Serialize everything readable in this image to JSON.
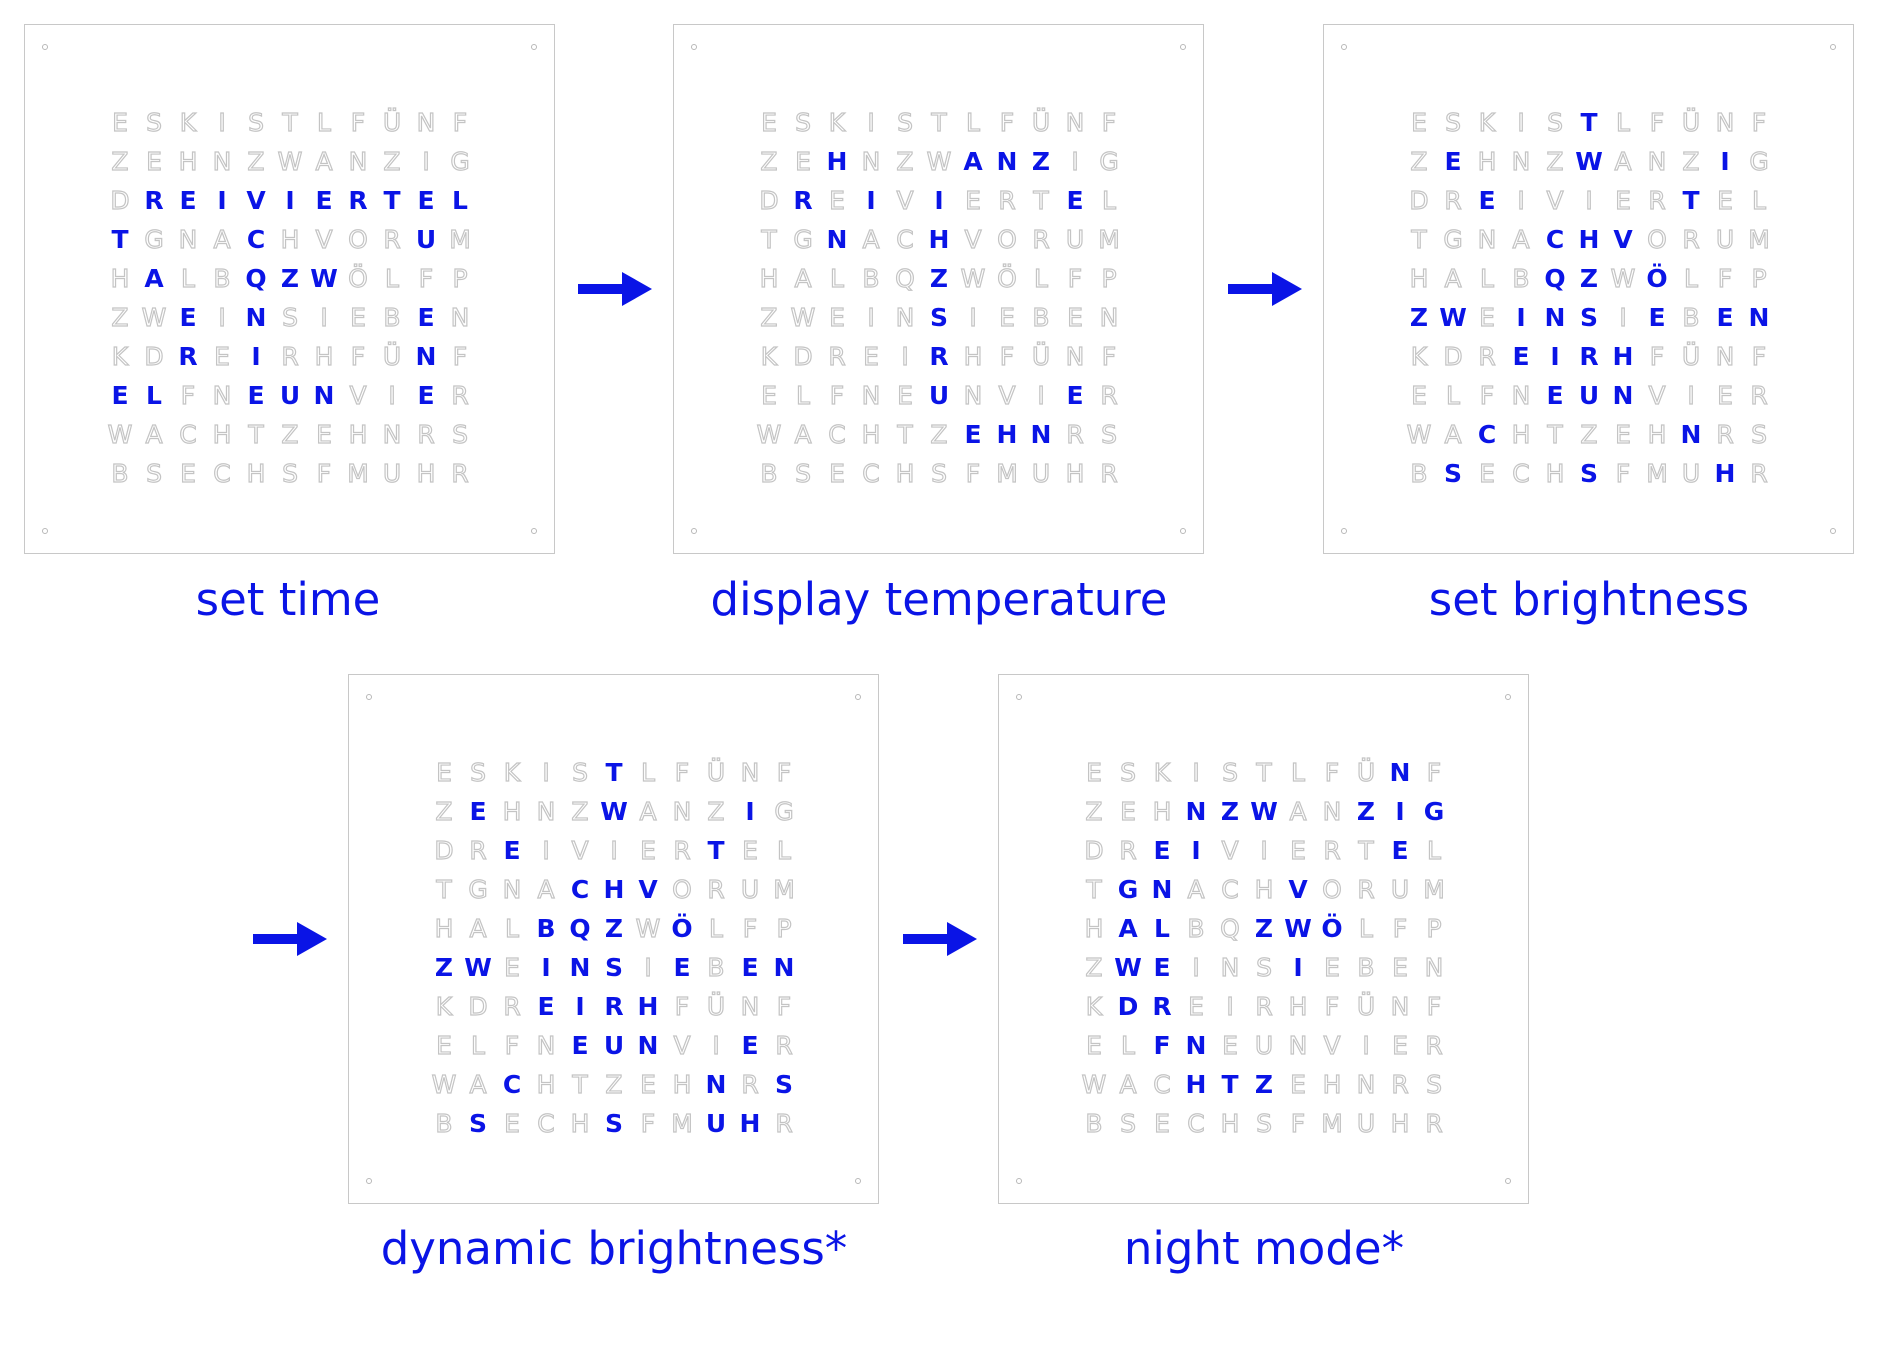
{
  "colors": {
    "active": "#0a14e6",
    "inactive_stroke": "#c4c4c4",
    "panel_border": "#c8c8c8"
  },
  "grid_rows": [
    "ESKISTLFÜNF",
    "ZEHNZWANZIG",
    "DREIVIERTEL",
    "TGNACHVORUM",
    "HALBQZWÖLFP",
    "ZWEINSIEBEN",
    "KDREIRHFÜNF",
    "ELFNEUNVIER",
    "WACHTZEHNRS",
    "BSECHSFMUHR"
  ],
  "panels": [
    {
      "caption": "set time",
      "lit": [
        [],
        [],
        [
          1,
          2,
          3,
          4,
          5,
          6,
          7,
          8,
          9,
          10
        ],
        [
          0,
          4,
          9
        ],
        [
          1,
          4,
          5,
          6
        ],
        [
          2,
          4,
          9
        ],
        [
          2,
          4,
          9
        ],
        [
          0,
          1,
          4,
          5,
          6,
          9
        ],
        [],
        []
      ]
    },
    {
      "caption": "display temperature",
      "lit": [
        [],
        [
          2,
          6,
          7,
          8
        ],
        [
          1,
          3,
          5,
          9
        ],
        [
          2,
          5
        ],
        [
          5
        ],
        [
          5
        ],
        [
          5
        ],
        [
          5,
          9
        ],
        [
          6,
          7,
          8
        ],
        []
      ]
    },
    {
      "caption": "set brightness",
      "lit": [
        [
          5
        ],
        [
          1,
          5,
          9
        ],
        [
          2,
          8
        ],
        [
          4,
          5,
          6
        ],
        [
          4,
          5,
          7
        ],
        [
          0,
          1,
          3,
          4,
          5,
          7,
          9,
          10
        ],
        [
          3,
          4,
          5,
          6
        ],
        [
          4,
          5,
          6
        ],
        [
          2,
          8
        ],
        [
          1,
          5,
          9
        ]
      ]
    },
    {
      "caption": "dynamic brightness*",
      "lit": [
        [
          5
        ],
        [
          1,
          5,
          9
        ],
        [
          2,
          8
        ],
        [
          4,
          5,
          6
        ],
        [
          3,
          4,
          5,
          7
        ],
        [
          0,
          1,
          3,
          4,
          5,
          7,
          9,
          10
        ],
        [
          3,
          4,
          5,
          6
        ],
        [
          4,
          5,
          6,
          9
        ],
        [
          2,
          8,
          10
        ],
        [
          1,
          5,
          8,
          9
        ]
      ]
    },
    {
      "caption": "night mode*",
      "lit": [
        [
          9
        ],
        [
          3,
          4,
          5,
          8,
          9,
          10
        ],
        [
          2,
          3,
          9
        ],
        [
          1,
          2,
          6
        ],
        [
          1,
          2,
          5,
          6,
          7
        ],
        [
          1,
          2,
          6
        ],
        [
          1,
          2
        ],
        [
          2,
          3
        ],
        [
          3,
          4,
          5
        ],
        []
      ]
    }
  ],
  "arrow_icon": "right-arrow-icon"
}
